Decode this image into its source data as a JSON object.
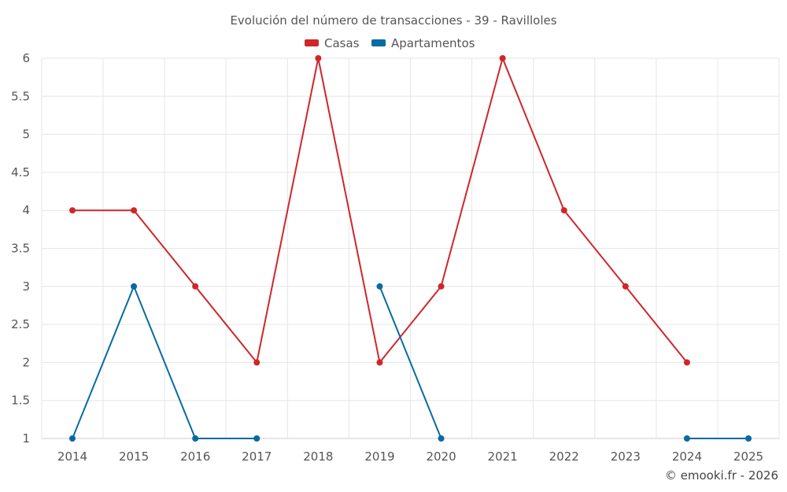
{
  "chart_data": {
    "type": "line",
    "title": "Evolución del número de transacciones - 39 - Ravilloles",
    "xlabel": "",
    "ylabel": "",
    "categories": [
      "2014",
      "2015",
      "2016",
      "2017",
      "2018",
      "2019",
      "2020",
      "2021",
      "2022",
      "2023",
      "2024",
      "2025"
    ],
    "ylim": [
      1,
      6
    ],
    "yticks": [
      "1",
      "1.5",
      "2",
      "2.5",
      "3",
      "3.5",
      "4",
      "4.5",
      "5",
      "5.5",
      "6"
    ],
    "grid": true,
    "legend_position": "top-center",
    "series": [
      {
        "name": "Casas",
        "color": "#d0262a",
        "values": [
          4,
          4,
          3,
          2,
          6,
          2,
          3,
          6,
          4,
          3,
          2,
          null
        ]
      },
      {
        "name": "Apartamentos",
        "color": "#0a6aa1",
        "values": [
          1,
          3,
          1,
          1,
          null,
          3,
          1,
          null,
          null,
          null,
          1,
          1
        ]
      }
    ]
  },
  "credit": "© emooki.fr - 2026"
}
